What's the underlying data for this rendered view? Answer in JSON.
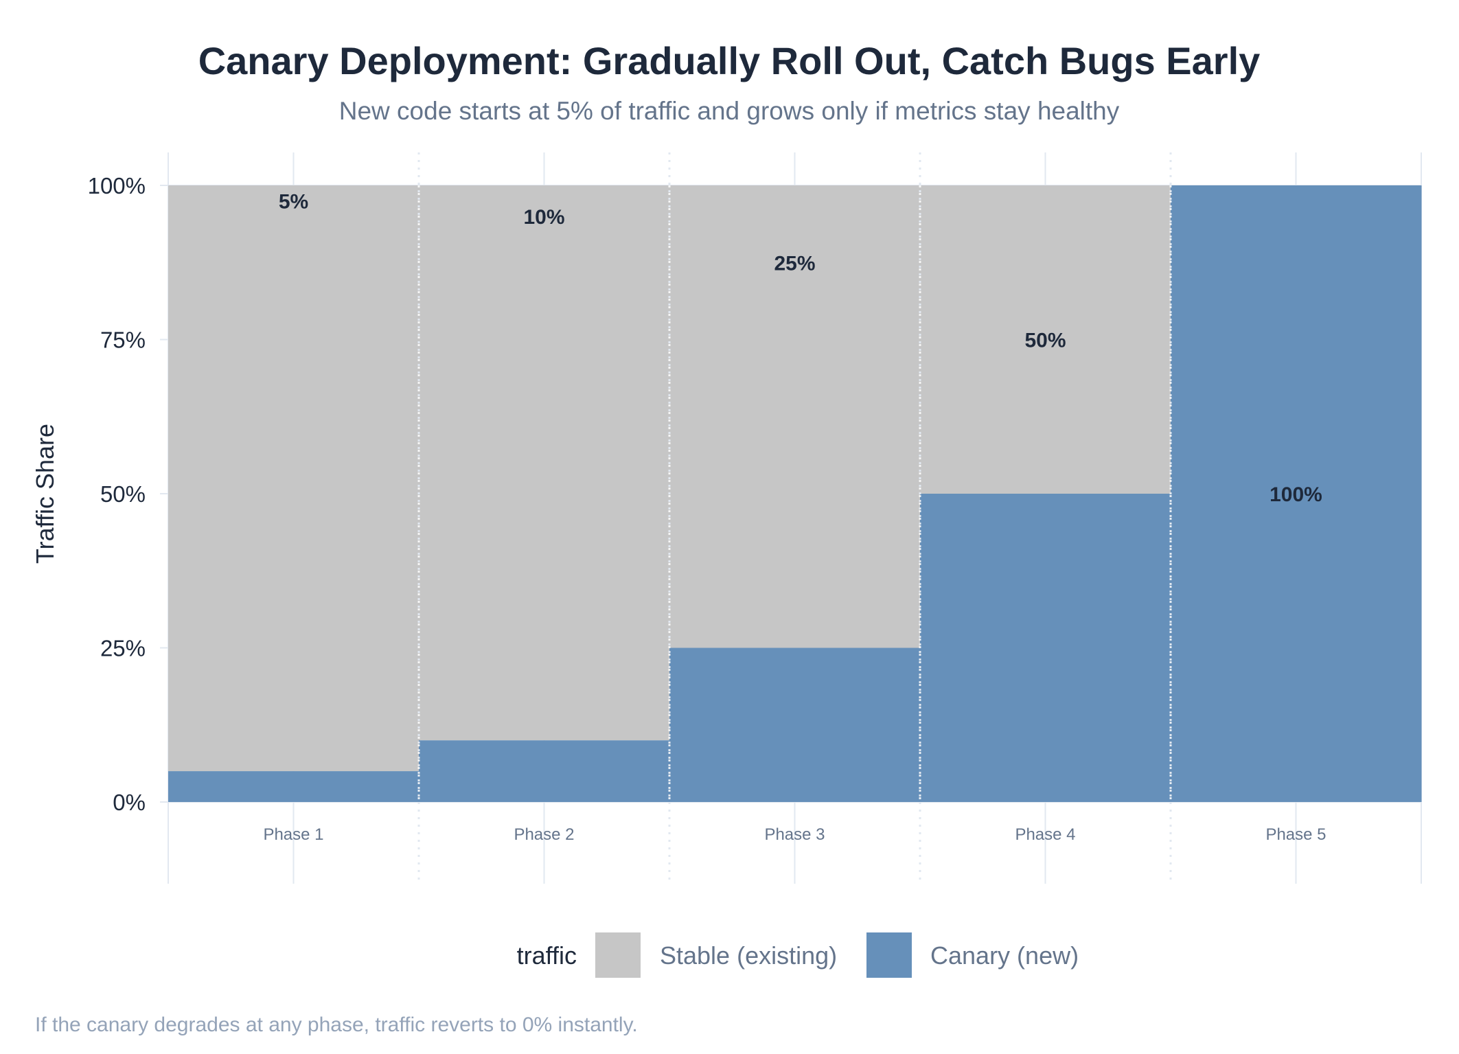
{
  "chart_data": {
    "type": "area",
    "title": "Canary Deployment: Gradually Roll Out, Catch Bugs Early",
    "subtitle": "New code starts at 5% of traffic and grows only if metrics stay healthy",
    "xlabel": "",
    "ylabel": "Traffic Share",
    "categories": [
      "Phase 1",
      "Phase 2",
      "Phase 3",
      "Phase 4",
      "Phase 5"
    ],
    "series": [
      {
        "name": "Stable (existing)",
        "values": [
          95,
          90,
          75,
          50,
          0
        ],
        "color": "#c6c6c6"
      },
      {
        "name": "Canary (new)",
        "values": [
          5,
          10,
          25,
          50,
          100
        ],
        "color": "#6690ba"
      }
    ],
    "data_labels": [
      "5%",
      "10%",
      "25%",
      "50%",
      "100%"
    ],
    "ylim": [
      0,
      100
    ],
    "yticks": [
      0,
      25,
      50,
      75,
      100
    ],
    "ytick_labels": [
      "0%",
      "25%",
      "50%",
      "75%",
      "100%"
    ],
    "grid": true,
    "legend": {
      "title": "traffic",
      "placement": "bottom"
    },
    "caption": "If the canary degrades at any phase, traffic reverts to 0% instantly."
  }
}
